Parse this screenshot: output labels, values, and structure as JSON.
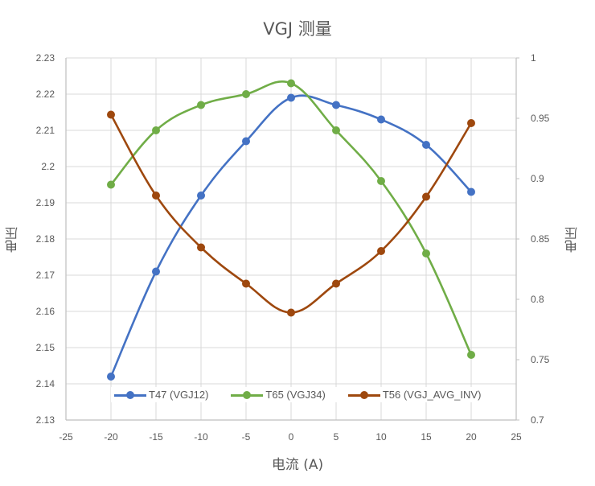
{
  "chart_data": {
    "type": "line",
    "title": "VGJ 测量",
    "xlabel": "电流 (A)",
    "ylabel": "电压",
    "y2label": "电压",
    "x": [
      -20,
      -15,
      -10,
      -5,
      0,
      5,
      10,
      15,
      20
    ],
    "xlim": [
      -25,
      25
    ],
    "xticks": [
      "-25",
      "-20",
      "-15",
      "-10",
      "-5",
      "0",
      "5",
      "10",
      "15",
      "20",
      "25"
    ],
    "ylim": [
      2.13,
      2.23
    ],
    "yticks": [
      "2.23",
      "2.22",
      "2.21",
      "2.2",
      "2.19",
      "2.18",
      "2.17",
      "2.16",
      "2.15",
      "2.14",
      "2.13"
    ],
    "y2lim": [
      0.7,
      1.0
    ],
    "y2ticks": [
      "1",
      "0.95",
      "0.9",
      "0.85",
      "0.8",
      "0.75",
      "0.7"
    ],
    "grid": true,
    "legend_position": "bottom-inside",
    "series": [
      {
        "name": "T47 (VGJ12)",
        "axis": "left",
        "color": "#4472C4",
        "values": [
          2.142,
          2.171,
          2.192,
          2.207,
          2.219,
          2.217,
          2.213,
          2.206,
          2.193
        ]
      },
      {
        "name": "T65 (VGJ34)",
        "axis": "left",
        "color": "#70AD47",
        "values": [
          2.195,
          2.21,
          2.217,
          2.22,
          2.223,
          2.21,
          2.196,
          2.176,
          2.148
        ]
      },
      {
        "name": "T56 (VGJ_AVG_INV)",
        "axis": "right",
        "color": "#9E480E",
        "values": [
          0.953,
          0.886,
          0.843,
          0.813,
          0.789,
          0.813,
          0.84,
          0.885,
          0.946
        ]
      }
    ]
  },
  "labels": {
    "title": "VGJ 测量",
    "xlabel": "电流 (A)",
    "ylabel_left": "电压",
    "ylabel_right": "电压"
  },
  "legend": [
    {
      "label": "T47 (VGJ12)",
      "color": "#4472C4"
    },
    {
      "label": "T65 (VGJ34)",
      "color": "#70AD47"
    },
    {
      "label": "T56 (VGJ_AVG_INV)",
      "color": "#9E480E"
    }
  ]
}
